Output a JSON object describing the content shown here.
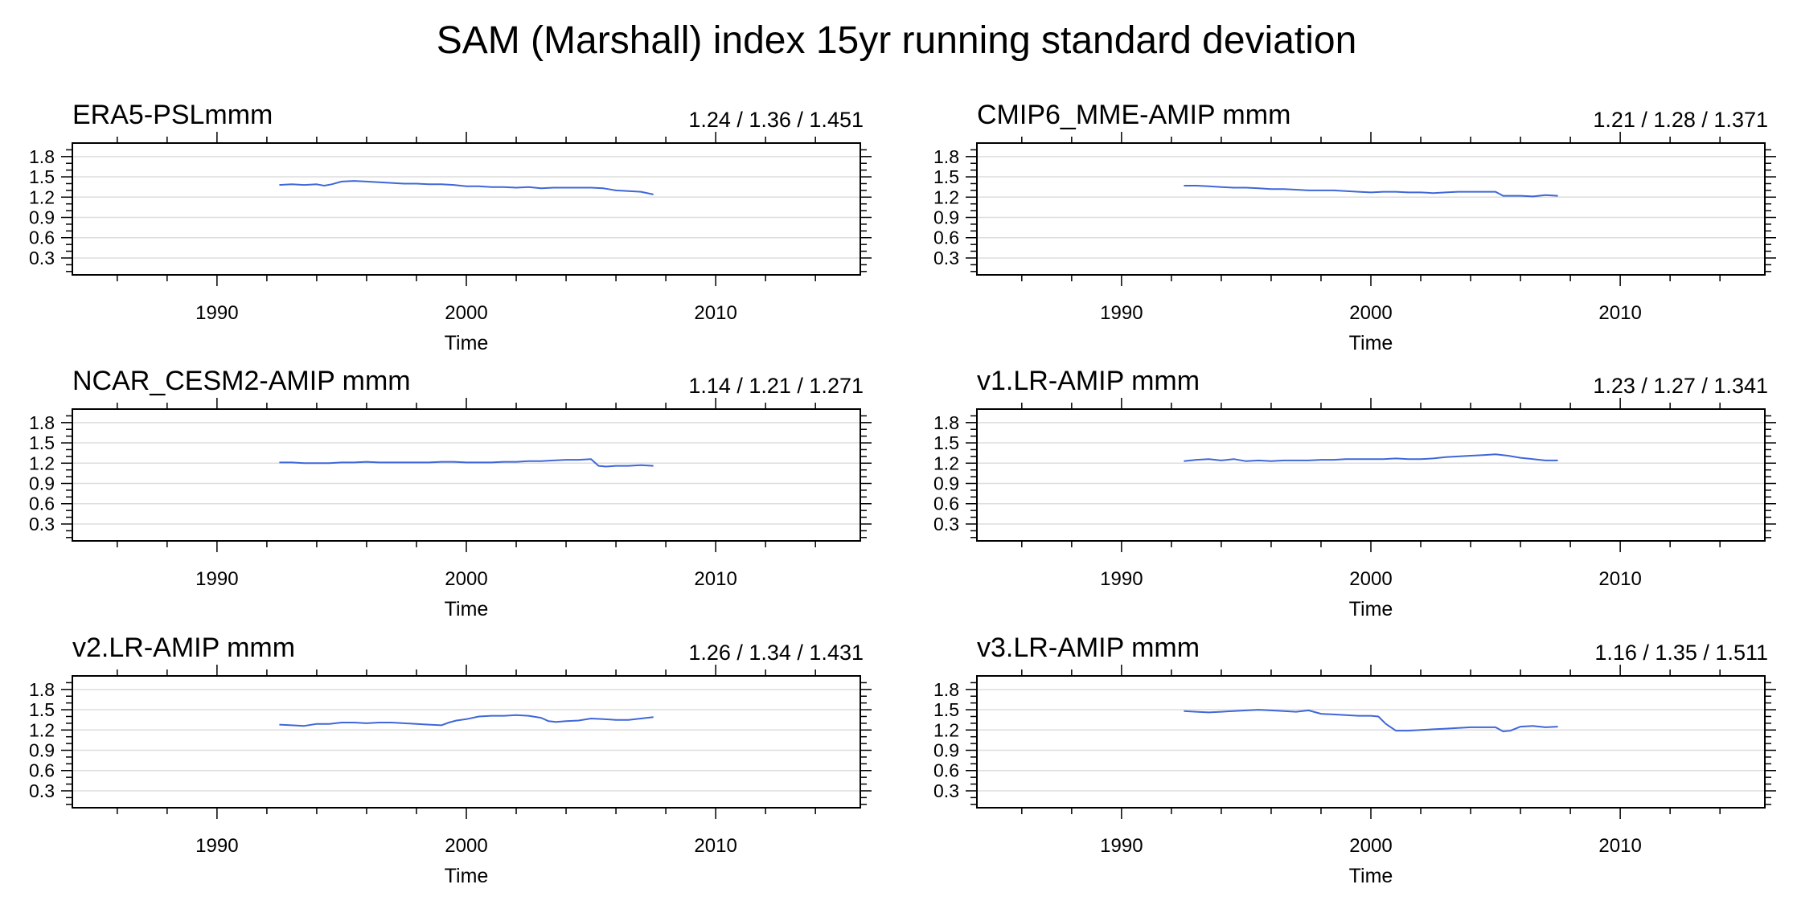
{
  "figure": {
    "title": "SAM (Marshall) index 15yr running standard deviation"
  },
  "style": {
    "line_color": "#3f67d8",
    "grid_color": "#dddddd",
    "axis_color": "#000000"
  },
  "chart_data": [
    {
      "type": "line",
      "title": "ERA5-PSLmmm",
      "stats": "1.24 / 1.36 / 1.451",
      "xlabel": "Time",
      "ylabel": "",
      "xlim": [
        1984.2,
        2015.8
      ],
      "ylim": [
        0.05,
        2.0
      ],
      "xticks": [
        1990,
        2000,
        2010
      ],
      "xtick_labels": [
        "1990",
        "2000",
        "2010"
      ],
      "yticks": [
        0.3,
        0.6,
        0.9,
        1.2,
        1.5,
        1.8
      ],
      "ytick_labels": [
        "0.3",
        "0.6",
        "0.9",
        "1.2",
        "1.5",
        "1.8"
      ],
      "grid": "horizontal",
      "x": [
        1992.5,
        1993.0,
        1993.5,
        1994.0,
        1994.3,
        1994.6,
        1995.0,
        1995.5,
        1996.0,
        1996.5,
        1997.0,
        1997.5,
        1998.0,
        1998.5,
        1999.0,
        1999.5,
        2000.0,
        2000.5,
        2001.0,
        2001.5,
        2002.0,
        2002.5,
        2003.0,
        2003.5,
        2004.0,
        2004.5,
        2005.0,
        2005.5,
        2006.0,
        2006.5,
        2007.0,
        2007.5
      ],
      "y": [
        1.38,
        1.39,
        1.38,
        1.39,
        1.37,
        1.39,
        1.43,
        1.44,
        1.43,
        1.42,
        1.41,
        1.4,
        1.4,
        1.39,
        1.39,
        1.38,
        1.36,
        1.36,
        1.35,
        1.35,
        1.34,
        1.35,
        1.33,
        1.34,
        1.34,
        1.34,
        1.34,
        1.33,
        1.3,
        1.29,
        1.28,
        1.24
      ]
    },
    {
      "type": "line",
      "title": "CMIP6_MME-AMIP  mmm",
      "stats": "1.21 / 1.28 / 1.371",
      "xlabel": "Time",
      "ylabel": "",
      "xlim": [
        1984.2,
        2015.8
      ],
      "ylim": [
        0.05,
        2.0
      ],
      "xticks": [
        1990,
        2000,
        2010
      ],
      "xtick_labels": [
        "1990",
        "2000",
        "2010"
      ],
      "yticks": [
        0.3,
        0.6,
        0.9,
        1.2,
        1.5,
        1.8
      ],
      "ytick_labels": [
        "0.3",
        "0.6",
        "0.9",
        "1.2",
        "1.5",
        "1.8"
      ],
      "grid": "horizontal",
      "x": [
        1992.5,
        1993.0,
        1993.5,
        1994.0,
        1994.5,
        1995.0,
        1995.5,
        1996.0,
        1996.5,
        1997.0,
        1997.5,
        1998.0,
        1998.5,
        1999.0,
        1999.5,
        2000.0,
        2000.5,
        2001.0,
        2001.5,
        2002.0,
        2002.5,
        2003.0,
        2003.5,
        2004.0,
        2004.5,
        2005.0,
        2005.3,
        2005.6,
        2006.0,
        2006.5,
        2007.0,
        2007.5
      ],
      "y": [
        1.37,
        1.37,
        1.36,
        1.35,
        1.34,
        1.34,
        1.33,
        1.32,
        1.32,
        1.31,
        1.3,
        1.3,
        1.3,
        1.29,
        1.28,
        1.27,
        1.28,
        1.28,
        1.27,
        1.27,
        1.26,
        1.27,
        1.28,
        1.28,
        1.28,
        1.28,
        1.22,
        1.22,
        1.22,
        1.21,
        1.23,
        1.22
      ]
    },
    {
      "type": "line",
      "title": "NCAR_CESM2-AMIP  mmm",
      "stats": "1.14 / 1.21 / 1.271",
      "xlabel": "Time",
      "ylabel": "",
      "xlim": [
        1984.2,
        2015.8
      ],
      "ylim": [
        0.05,
        2.0
      ],
      "xticks": [
        1990,
        2000,
        2010
      ],
      "xtick_labels": [
        "1990",
        "2000",
        "2010"
      ],
      "yticks": [
        0.3,
        0.6,
        0.9,
        1.2,
        1.5,
        1.8
      ],
      "ytick_labels": [
        "0.3",
        "0.6",
        "0.9",
        "1.2",
        "1.5",
        "1.8"
      ],
      "grid": "horizontal",
      "x": [
        1992.5,
        1993.0,
        1993.5,
        1994.0,
        1994.5,
        1995.0,
        1995.5,
        1996.0,
        1996.5,
        1997.0,
        1997.5,
        1998.0,
        1998.5,
        1999.0,
        1999.5,
        2000.0,
        2000.5,
        2001.0,
        2001.5,
        2002.0,
        2002.5,
        2003.0,
        2003.5,
        2004.0,
        2004.5,
        2005.0,
        2005.3,
        2005.6,
        2006.0,
        2006.5,
        2007.0,
        2007.5
      ],
      "y": [
        1.21,
        1.21,
        1.2,
        1.2,
        1.2,
        1.21,
        1.21,
        1.22,
        1.21,
        1.21,
        1.21,
        1.21,
        1.21,
        1.22,
        1.22,
        1.21,
        1.21,
        1.21,
        1.22,
        1.22,
        1.23,
        1.23,
        1.24,
        1.25,
        1.25,
        1.26,
        1.16,
        1.15,
        1.16,
        1.16,
        1.17,
        1.16
      ]
    },
    {
      "type": "line",
      "title": "v1.LR-AMIP  mmm",
      "stats": "1.23 / 1.27 / 1.341",
      "xlabel": "Time",
      "ylabel": "",
      "xlim": [
        1984.2,
        2015.8
      ],
      "ylim": [
        0.05,
        2.0
      ],
      "xticks": [
        1990,
        2000,
        2010
      ],
      "xtick_labels": [
        "1990",
        "2000",
        "2010"
      ],
      "yticks": [
        0.3,
        0.6,
        0.9,
        1.2,
        1.5,
        1.8
      ],
      "ytick_labels": [
        "0.3",
        "0.6",
        "0.9",
        "1.2",
        "1.5",
        "1.8"
      ],
      "grid": "horizontal",
      "x": [
        1992.5,
        1993.0,
        1993.5,
        1994.0,
        1994.5,
        1995.0,
        1995.5,
        1996.0,
        1996.5,
        1997.0,
        1997.5,
        1998.0,
        1998.5,
        1999.0,
        1999.5,
        2000.0,
        2000.5,
        2001.0,
        2001.5,
        2002.0,
        2002.5,
        2003.0,
        2003.5,
        2004.0,
        2004.5,
        2005.0,
        2005.5,
        2006.0,
        2006.5,
        2007.0,
        2007.5
      ],
      "y": [
        1.23,
        1.25,
        1.26,
        1.24,
        1.26,
        1.23,
        1.24,
        1.23,
        1.24,
        1.24,
        1.24,
        1.25,
        1.25,
        1.26,
        1.26,
        1.26,
        1.26,
        1.27,
        1.26,
        1.26,
        1.27,
        1.29,
        1.3,
        1.31,
        1.32,
        1.33,
        1.31,
        1.28,
        1.26,
        1.24,
        1.24
      ]
    },
    {
      "type": "line",
      "title": "v2.LR-AMIP  mmm",
      "stats": "1.26 / 1.34 / 1.431",
      "xlabel": "Time",
      "ylabel": "",
      "xlim": [
        1984.2,
        2015.8
      ],
      "ylim": [
        0.05,
        2.0
      ],
      "xticks": [
        1990,
        2000,
        2010
      ],
      "xtick_labels": [
        "1990",
        "2000",
        "2010"
      ],
      "yticks": [
        0.3,
        0.6,
        0.9,
        1.2,
        1.5,
        1.8
      ],
      "ytick_labels": [
        "0.3",
        "0.6",
        "0.9",
        "1.2",
        "1.5",
        "1.8"
      ],
      "grid": "horizontal",
      "x": [
        1992.5,
        1993.0,
        1993.5,
        1994.0,
        1994.5,
        1995.0,
        1995.5,
        1996.0,
        1996.5,
        1997.0,
        1997.5,
        1998.0,
        1998.5,
        1999.0,
        1999.3,
        1999.6,
        2000.0,
        2000.5,
        2001.0,
        2001.5,
        2002.0,
        2002.5,
        2003.0,
        2003.3,
        2003.6,
        2004.0,
        2004.5,
        2005.0,
        2005.5,
        2006.0,
        2006.5,
        2007.0,
        2007.5
      ],
      "y": [
        1.28,
        1.27,
        1.26,
        1.29,
        1.29,
        1.31,
        1.31,
        1.3,
        1.31,
        1.31,
        1.3,
        1.29,
        1.28,
        1.27,
        1.31,
        1.34,
        1.36,
        1.4,
        1.41,
        1.41,
        1.42,
        1.41,
        1.38,
        1.33,
        1.32,
        1.33,
        1.34,
        1.37,
        1.36,
        1.35,
        1.35,
        1.37,
        1.39
      ]
    },
    {
      "type": "line",
      "title": "v3.LR-AMIP  mmm",
      "stats": "1.16 / 1.35 / 1.511",
      "xlabel": "Time",
      "ylabel": "",
      "xlim": [
        1984.2,
        2015.8
      ],
      "ylim": [
        0.05,
        2.0
      ],
      "xticks": [
        1990,
        2000,
        2010
      ],
      "xtick_labels": [
        "1990",
        "2000",
        "2010"
      ],
      "yticks": [
        0.3,
        0.6,
        0.9,
        1.2,
        1.5,
        1.8
      ],
      "ytick_labels": [
        "0.3",
        "0.6",
        "0.9",
        "1.2",
        "1.5",
        "1.8"
      ],
      "grid": "horizontal",
      "x": [
        1992.5,
        1993.0,
        1993.5,
        1994.0,
        1994.5,
        1995.0,
        1995.5,
        1996.0,
        1996.5,
        1997.0,
        1997.5,
        1998.0,
        1998.5,
        1999.0,
        1999.5,
        2000.0,
        2000.3,
        2000.6,
        2001.0,
        2001.5,
        2002.0,
        2002.5,
        2003.0,
        2003.5,
        2004.0,
        2004.5,
        2005.0,
        2005.3,
        2005.6,
        2006.0,
        2006.5,
        2007.0,
        2007.5
      ],
      "y": [
        1.48,
        1.47,
        1.46,
        1.47,
        1.48,
        1.49,
        1.5,
        1.49,
        1.48,
        1.47,
        1.49,
        1.44,
        1.43,
        1.42,
        1.41,
        1.41,
        1.4,
        1.29,
        1.19,
        1.19,
        1.2,
        1.21,
        1.22,
        1.23,
        1.24,
        1.24,
        1.24,
        1.18,
        1.19,
        1.25,
        1.26,
        1.24,
        1.25
      ]
    }
  ]
}
